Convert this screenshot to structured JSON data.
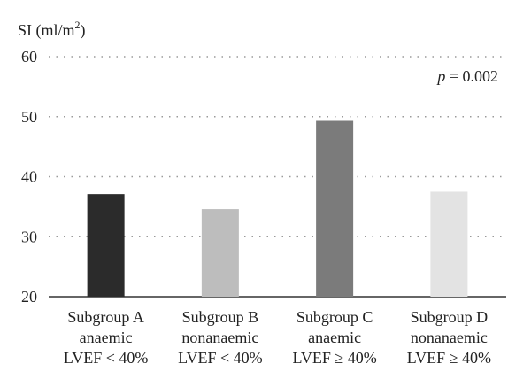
{
  "chart_data": {
    "type": "bar",
    "ylabel_main": "SI (ml/m",
    "ylabel_sup": "2",
    "ylabel_end": ")",
    "ylim": [
      20,
      60
    ],
    "yticks": [
      "20",
      "30",
      "40",
      "50",
      "60"
    ],
    "grid": true,
    "annotation_p": "p",
    "annotation_rest": " = 0.002",
    "categories": [
      [
        "Subgroup A",
        "anaemic",
        "LVEF < 40%"
      ],
      [
        "Subgroup B",
        "nonanaemic",
        "LVEF < 40%"
      ],
      [
        "Subgroup C",
        "anaemic",
        "LVEF ≥ 40%"
      ],
      [
        "Subgroup D",
        "nonanaemic",
        "LVEF ≥ 40%"
      ]
    ],
    "values": [
      37.1,
      34.6,
      49.3,
      37.5
    ],
    "colors": [
      "#2b2b2b",
      "#bdbdbd",
      "#7b7b7b",
      "#e3e3e3"
    ]
  }
}
